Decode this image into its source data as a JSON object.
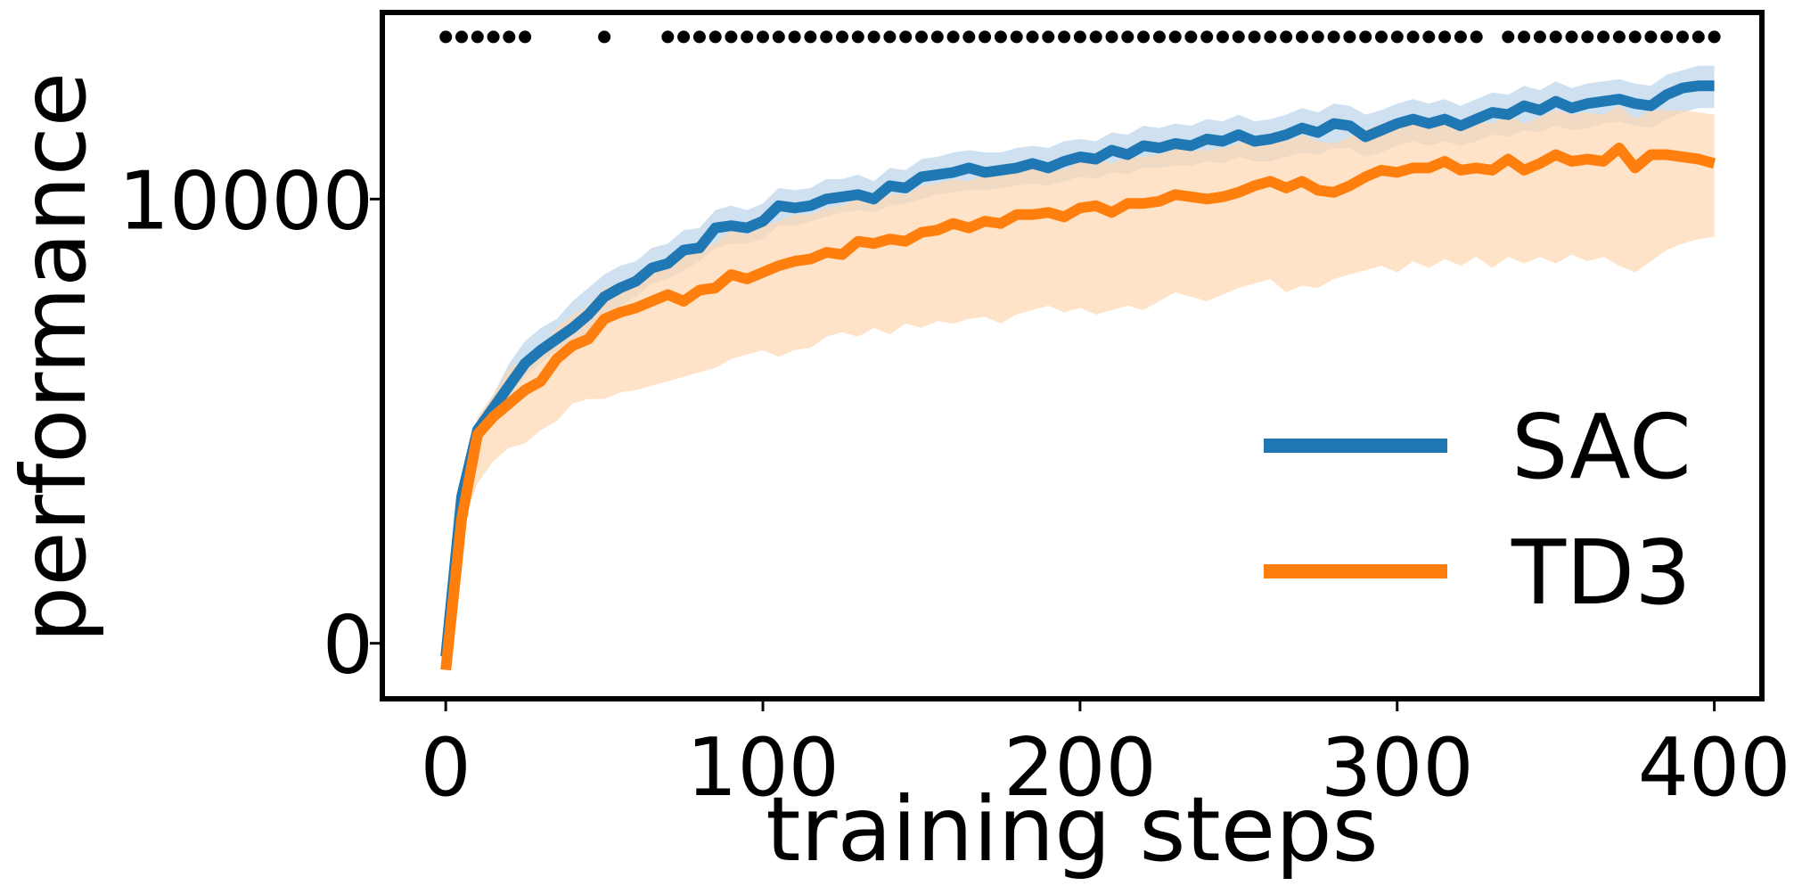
{
  "chart_data": {
    "type": "line",
    "title": "",
    "xlabel": "training steps",
    "ylabel": "performance",
    "xlim": [
      -20,
      415
    ],
    "ylim": [
      -1250,
      14200
    ],
    "x_ticks": [
      0,
      100,
      200,
      300,
      400
    ],
    "x_tick_labels": [
      "0",
      "100",
      "200",
      "300",
      "400"
    ],
    "y_ticks": [
      0,
      10000
    ],
    "y_tick_labels": [
      "0",
      "10000"
    ],
    "grid": false,
    "legend": "lower-right",
    "x": [
      0,
      5,
      10,
      15,
      20,
      25,
      30,
      35,
      40,
      45,
      50,
      55,
      60,
      65,
      70,
      75,
      80,
      85,
      90,
      95,
      100,
      105,
      110,
      115,
      120,
      125,
      130,
      135,
      140,
      145,
      150,
      155,
      160,
      165,
      170,
      175,
      180,
      185,
      190,
      195,
      200,
      205,
      210,
      215,
      220,
      225,
      230,
      235,
      240,
      245,
      250,
      255,
      260,
      265,
      270,
      275,
      280,
      285,
      290,
      295,
      300,
      305,
      310,
      315,
      320,
      325,
      330,
      335,
      340,
      345,
      350,
      355,
      360,
      365,
      370,
      375,
      380,
      385,
      390,
      395,
      400
    ],
    "series": [
      {
        "name": "SAC",
        "color": "#1f77b4",
        "band_color": "#bad4ea",
        "values": [
          -300,
          3300,
          4800,
          5300,
          5800,
          6300,
          6600,
          6850,
          7100,
          7400,
          7800,
          8000,
          8150,
          8450,
          8550,
          8850,
          8900,
          9350,
          9400,
          9350,
          9500,
          9850,
          9800,
          9850,
          10000,
          10050,
          10100,
          10000,
          10300,
          10250,
          10500,
          10550,
          10600,
          10700,
          10600,
          10650,
          10700,
          10800,
          10700,
          10850,
          10950,
          10900,
          11100,
          11000,
          11200,
          11150,
          11250,
          11200,
          11350,
          11300,
          11450,
          11300,
          11350,
          11450,
          11600,
          11500,
          11700,
          11650,
          11400,
          11550,
          11700,
          11800,
          11700,
          11800,
          11650,
          11800,
          11950,
          11900,
          12100,
          12000,
          12200,
          12050,
          12150,
          12200,
          12250,
          12150,
          12100,
          12350,
          12500,
          12550,
          12550
        ],
        "lower": [
          -300,
          3000,
          4600,
          5100,
          5500,
          6000,
          6300,
          6600,
          6800,
          7000,
          7400,
          7600,
          7800,
          8100,
          8200,
          8400,
          8600,
          8900,
          9000,
          9000,
          9100,
          9400,
          9400,
          9500,
          9600,
          9700,
          9750,
          9700,
          9850,
          9900,
          10000,
          10100,
          10150,
          10200,
          10200,
          10250,
          10300,
          10350,
          10300,
          10400,
          10500,
          10450,
          10600,
          10550,
          10700,
          10700,
          10750,
          10750,
          10850,
          10800,
          10950,
          10850,
          10850,
          10950,
          11050,
          11000,
          11150,
          11150,
          10950,
          11050,
          11200,
          11300,
          11200,
          11300,
          11200,
          11300,
          11450,
          11400,
          11550,
          11500,
          11650,
          11550,
          11600,
          11700,
          11750,
          11650,
          11600,
          11800,
          11950,
          12050,
          12050
        ],
        "upper": [
          -300,
          3600,
          5000,
          5600,
          6300,
          6800,
          7100,
          7300,
          7700,
          8000,
          8300,
          8500,
          8600,
          8900,
          9000,
          9300,
          9350,
          9750,
          9850,
          9750,
          9900,
          10250,
          10200,
          10250,
          10450,
          10450,
          10550,
          10400,
          10700,
          10650,
          10900,
          10950,
          11050,
          11100,
          11050,
          11050,
          11150,
          11200,
          11150,
          11300,
          11350,
          11300,
          11500,
          11450,
          11650,
          11600,
          11700,
          11650,
          11800,
          11750,
          11900,
          11750,
          11800,
          11900,
          12050,
          11950,
          12150,
          12100,
          11900,
          12000,
          12150,
          12250,
          12150,
          12250,
          12100,
          12250,
          12400,
          12350,
          12550,
          12450,
          12650,
          12500,
          12600,
          12650,
          12700,
          12600,
          12550,
          12800,
          12900,
          13000,
          13000
        ]
      },
      {
        "name": "TD3",
        "color": "#ff7f0e",
        "band_color": "#ffd7b1",
        "values": [
          -600,
          2800,
          4700,
          5100,
          5400,
          5700,
          5900,
          6400,
          6700,
          6850,
          7300,
          7450,
          7550,
          7700,
          7850,
          7700,
          7950,
          8000,
          8300,
          8200,
          8350,
          8500,
          8600,
          8650,
          8800,
          8750,
          9050,
          9000,
          9100,
          9050,
          9250,
          9300,
          9450,
          9350,
          9500,
          9450,
          9650,
          9650,
          9700,
          9600,
          9800,
          9850,
          9700,
          9900,
          9900,
          9950,
          10100,
          10050,
          10000,
          10050,
          10150,
          10300,
          10400,
          10250,
          10400,
          10200,
          10150,
          10300,
          10500,
          10650,
          10600,
          10700,
          10700,
          10850,
          10650,
          10700,
          10650,
          10900,
          10650,
          10800,
          11000,
          10850,
          10900,
          10850,
          11150,
          10700,
          11000,
          11000,
          10950,
          10900,
          10800
        ],
        "lower": [
          -600,
          2600,
          3600,
          4100,
          4400,
          4500,
          4800,
          5000,
          5400,
          5500,
          5500,
          5650,
          5700,
          5800,
          5900,
          6000,
          6100,
          6200,
          6400,
          6500,
          6600,
          6450,
          6600,
          6650,
          6900,
          7000,
          6900,
          7100,
          6950,
          7200,
          7100,
          7250,
          7200,
          7300,
          7350,
          7200,
          7400,
          7500,
          7600,
          7450,
          7550,
          7400,
          7500,
          7600,
          7500,
          7700,
          7900,
          7800,
          7700,
          7850,
          8000,
          8100,
          8200,
          7900,
          8050,
          8000,
          8200,
          8300,
          8400,
          8500,
          8350,
          8600,
          8450,
          8650,
          8500,
          8700,
          8450,
          8700,
          8550,
          8700,
          8550,
          8750,
          8600,
          8700,
          8500,
          8350,
          8600,
          8850,
          9000,
          9100,
          9150
        ],
        "upper": [
          -600,
          3000,
          5100,
          5600,
          6200,
          6400,
          6600,
          7100,
          7400,
          7600,
          8000,
          8100,
          8300,
          8500,
          8700,
          8700,
          8900,
          9000,
          9300,
          9200,
          9400,
          9500,
          9650,
          9650,
          9800,
          9850,
          10050,
          10000,
          10100,
          10100,
          10300,
          10350,
          10450,
          10400,
          10550,
          10500,
          10700,
          10700,
          10750,
          10650,
          10850,
          10900,
          10800,
          10950,
          10950,
          11000,
          11150,
          11100,
          11100,
          11150,
          11250,
          11350,
          11400,
          11300,
          11450,
          11300,
          11250,
          11400,
          11550,
          11700,
          11650,
          11750,
          11750,
          11850,
          11700,
          11750,
          11700,
          11900,
          11700,
          11850,
          12000,
          11900,
          11950,
          11900,
          12100,
          11800,
          12000,
          12000,
          12000,
          11950,
          11900
        ]
      }
    ],
    "significance_marker_y": 13650,
    "significance_x": [
      0,
      5,
      10,
      15,
      20,
      25,
      50,
      70,
      75,
      80,
      85,
      90,
      95,
      100,
      105,
      110,
      115,
      120,
      125,
      130,
      135,
      140,
      145,
      150,
      155,
      160,
      165,
      170,
      175,
      180,
      185,
      190,
      195,
      200,
      205,
      210,
      215,
      220,
      225,
      230,
      235,
      240,
      245,
      250,
      255,
      260,
      265,
      270,
      275,
      280,
      285,
      290,
      295,
      300,
      305,
      310,
      315,
      320,
      325,
      335,
      340,
      345,
      350,
      355,
      360,
      365,
      370,
      375,
      380,
      385,
      390,
      395,
      400
    ]
  }
}
